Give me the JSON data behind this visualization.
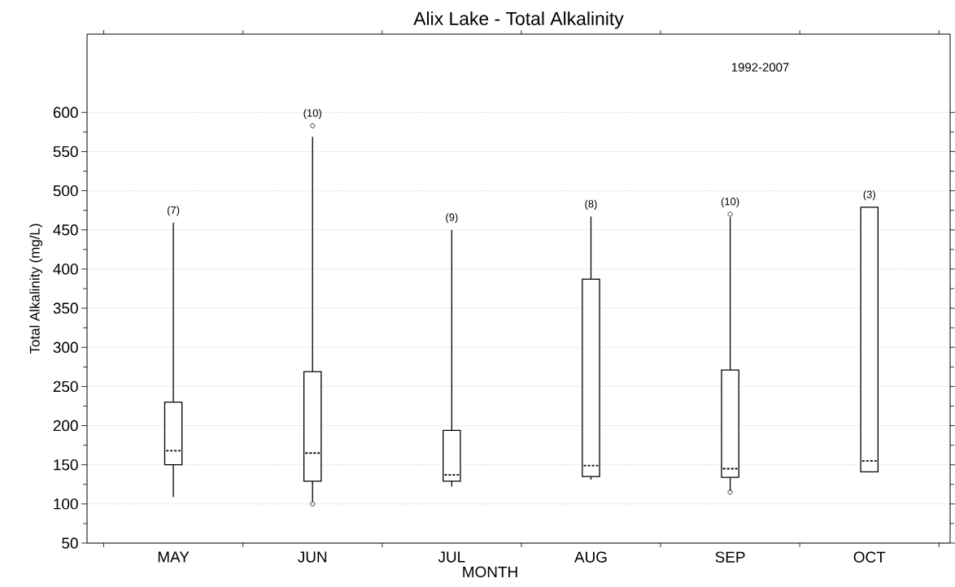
{
  "chart_data": {
    "type": "box",
    "title": "Alix Lake - Total Alkalinity",
    "xlabel": "MONTH",
    "ylabel": "Total Alkalinity (mg/L)",
    "categories": [
      "MAY",
      "JUN",
      "JUL",
      "AUG",
      "SEP",
      "OCT"
    ],
    "color": "#000000",
    "boxes": [
      {
        "low": 109,
        "q1": 150,
        "median": 168,
        "q3": 230,
        "high": 459
      },
      {
        "low": 103,
        "q1": 129,
        "median": 165,
        "q3": 269,
        "high": 569,
        "outliers": [
          100,
          583
        ]
      },
      {
        "low": 122,
        "q1": 129,
        "median": 137,
        "q3": 194,
        "high": 450
      },
      {
        "low": 131,
        "q1": 135,
        "median": 149,
        "q3": 387,
        "high": 467
      },
      {
        "low": 117,
        "q1": 134,
        "median": 145,
        "q3": 271,
        "high": 466,
        "outliers": [
          115,
          470
        ]
      },
      {
        "low": 141,
        "q1": 141,
        "median": 155,
        "q3": 479,
        "high": 479
      }
    ],
    "ylim": [
      50,
      700
    ],
    "yticks": [
      50,
      100,
      150,
      200,
      250,
      300,
      350,
      400,
      450,
      500,
      550,
      600
    ],
    "grid": "y",
    "annotations": [
      "(7)",
      "(10)",
      "(9)",
      "(8)",
      "(10)",
      "(3)",
      "1992-2007"
    ]
  }
}
